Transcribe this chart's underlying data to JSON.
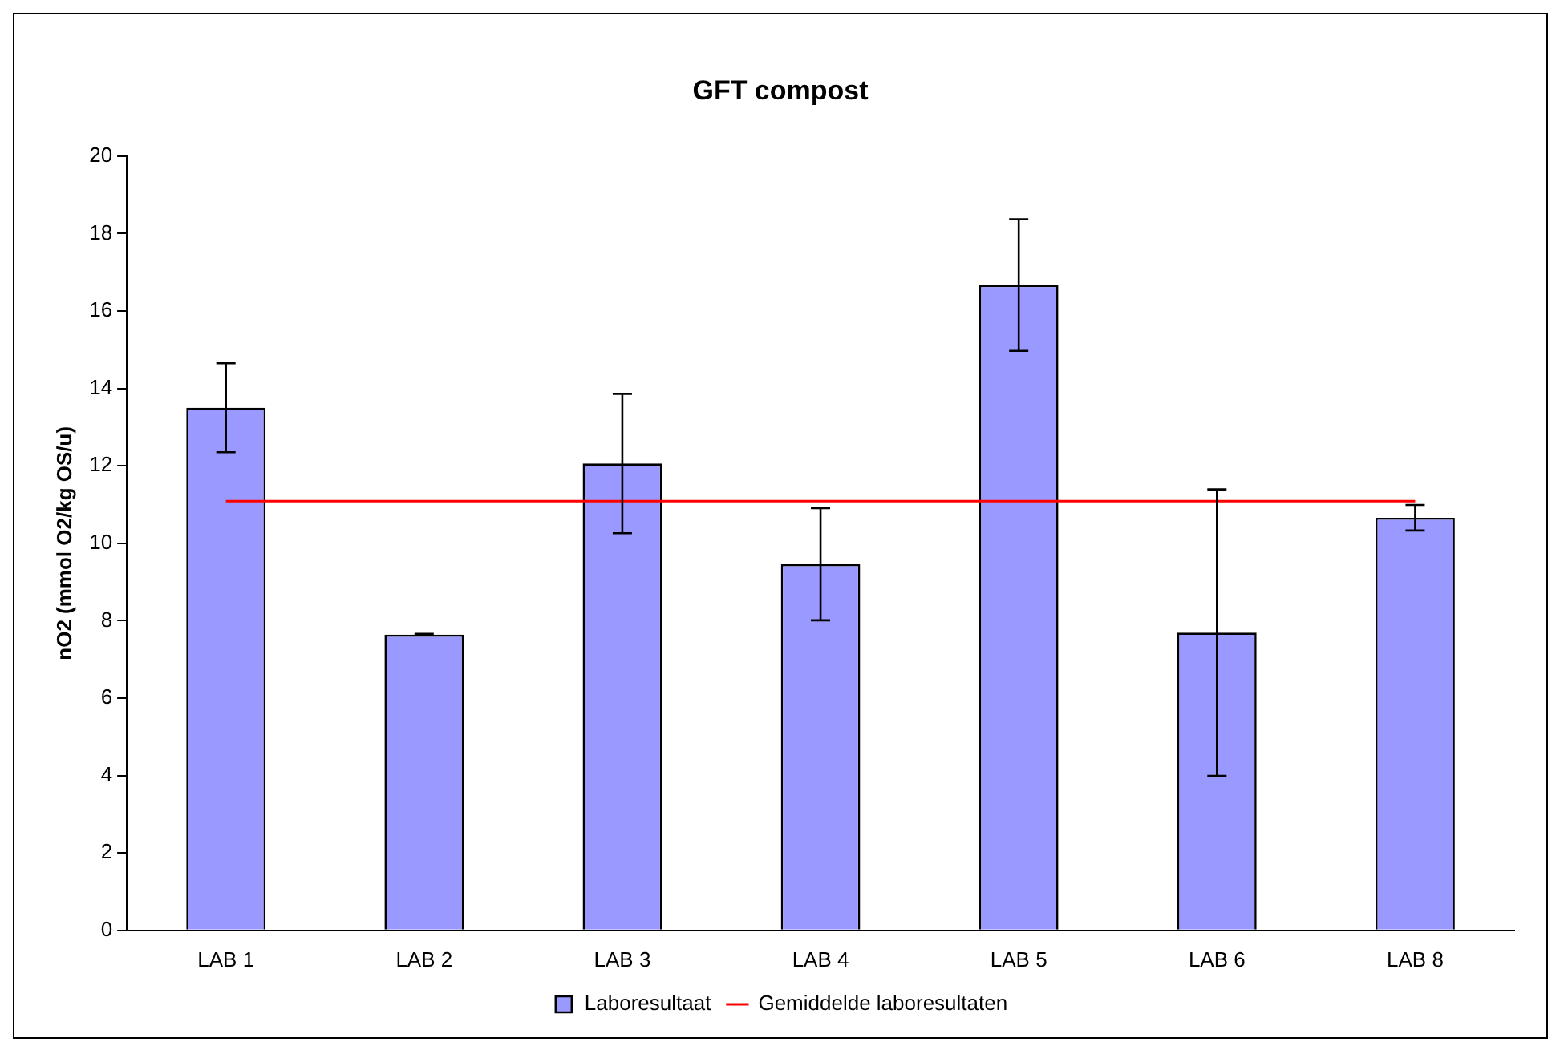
{
  "chart_data": {
    "type": "bar",
    "title": "GFT compost",
    "ylabel": "nO2 (mmol O2/kg OS/u)",
    "categories": [
      "LAB 1",
      "LAB 2",
      "LAB 3",
      "LAB 4",
      "LAB 5",
      "LAB 6",
      "LAB 8"
    ],
    "series": [
      {
        "name": "Laboresultaat",
        "color": "#9999ff",
        "values": [
          13.5,
          7.64,
          12.06,
          9.46,
          16.67,
          7.69,
          10.66
        ],
        "errors": [
          1.15,
          0.02,
          1.8,
          1.45,
          1.7,
          3.7,
          0.33
        ]
      },
      {
        "name": "Gemiddelde laboresultaten",
        "type": "line",
        "color": "#ff0000",
        "values": [
          11.09,
          11.09,
          11.09,
          11.09,
          11.09,
          11.09,
          11.09
        ],
        "marker": "none"
      }
    ],
    "ylim": [
      0,
      20
    ],
    "yticks": [
      0,
      2,
      4,
      6,
      8,
      10,
      12,
      14,
      16,
      18,
      20
    ],
    "grid": false,
    "legend": "bottom"
  }
}
